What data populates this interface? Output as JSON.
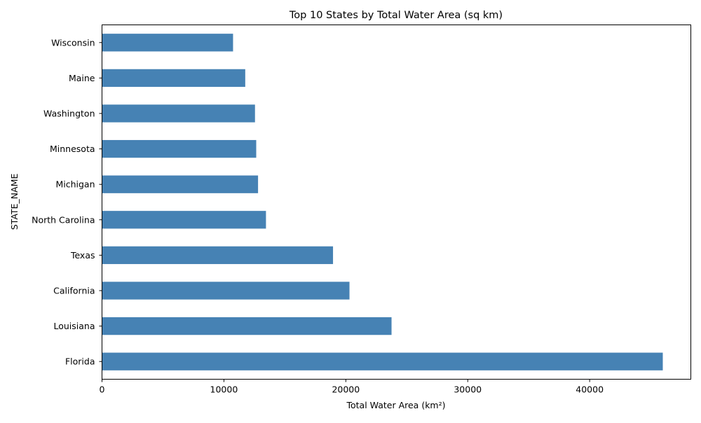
{
  "chart_data": {
    "type": "bar",
    "orientation": "horizontal",
    "title": "Top 10 States by Total Water Area (sq km)",
    "xlabel": "Total Water Area (km²)",
    "ylabel": "STATE_NAME",
    "categories": [
      "Florida",
      "Louisiana",
      "California",
      "Texas",
      "North Carolina",
      "Michigan",
      "Minnesota",
      "Washington",
      "Maine",
      "Wisconsin"
    ],
    "values": [
      46000,
      23750,
      20300,
      18950,
      13450,
      12800,
      12650,
      12550,
      11750,
      10750
    ],
    "xlim": [
      0,
      48300
    ],
    "xticks": [
      0,
      10000,
      20000,
      30000,
      40000
    ],
    "bar_color": "#4682b4",
    "grid": false,
    "legend": "none"
  }
}
